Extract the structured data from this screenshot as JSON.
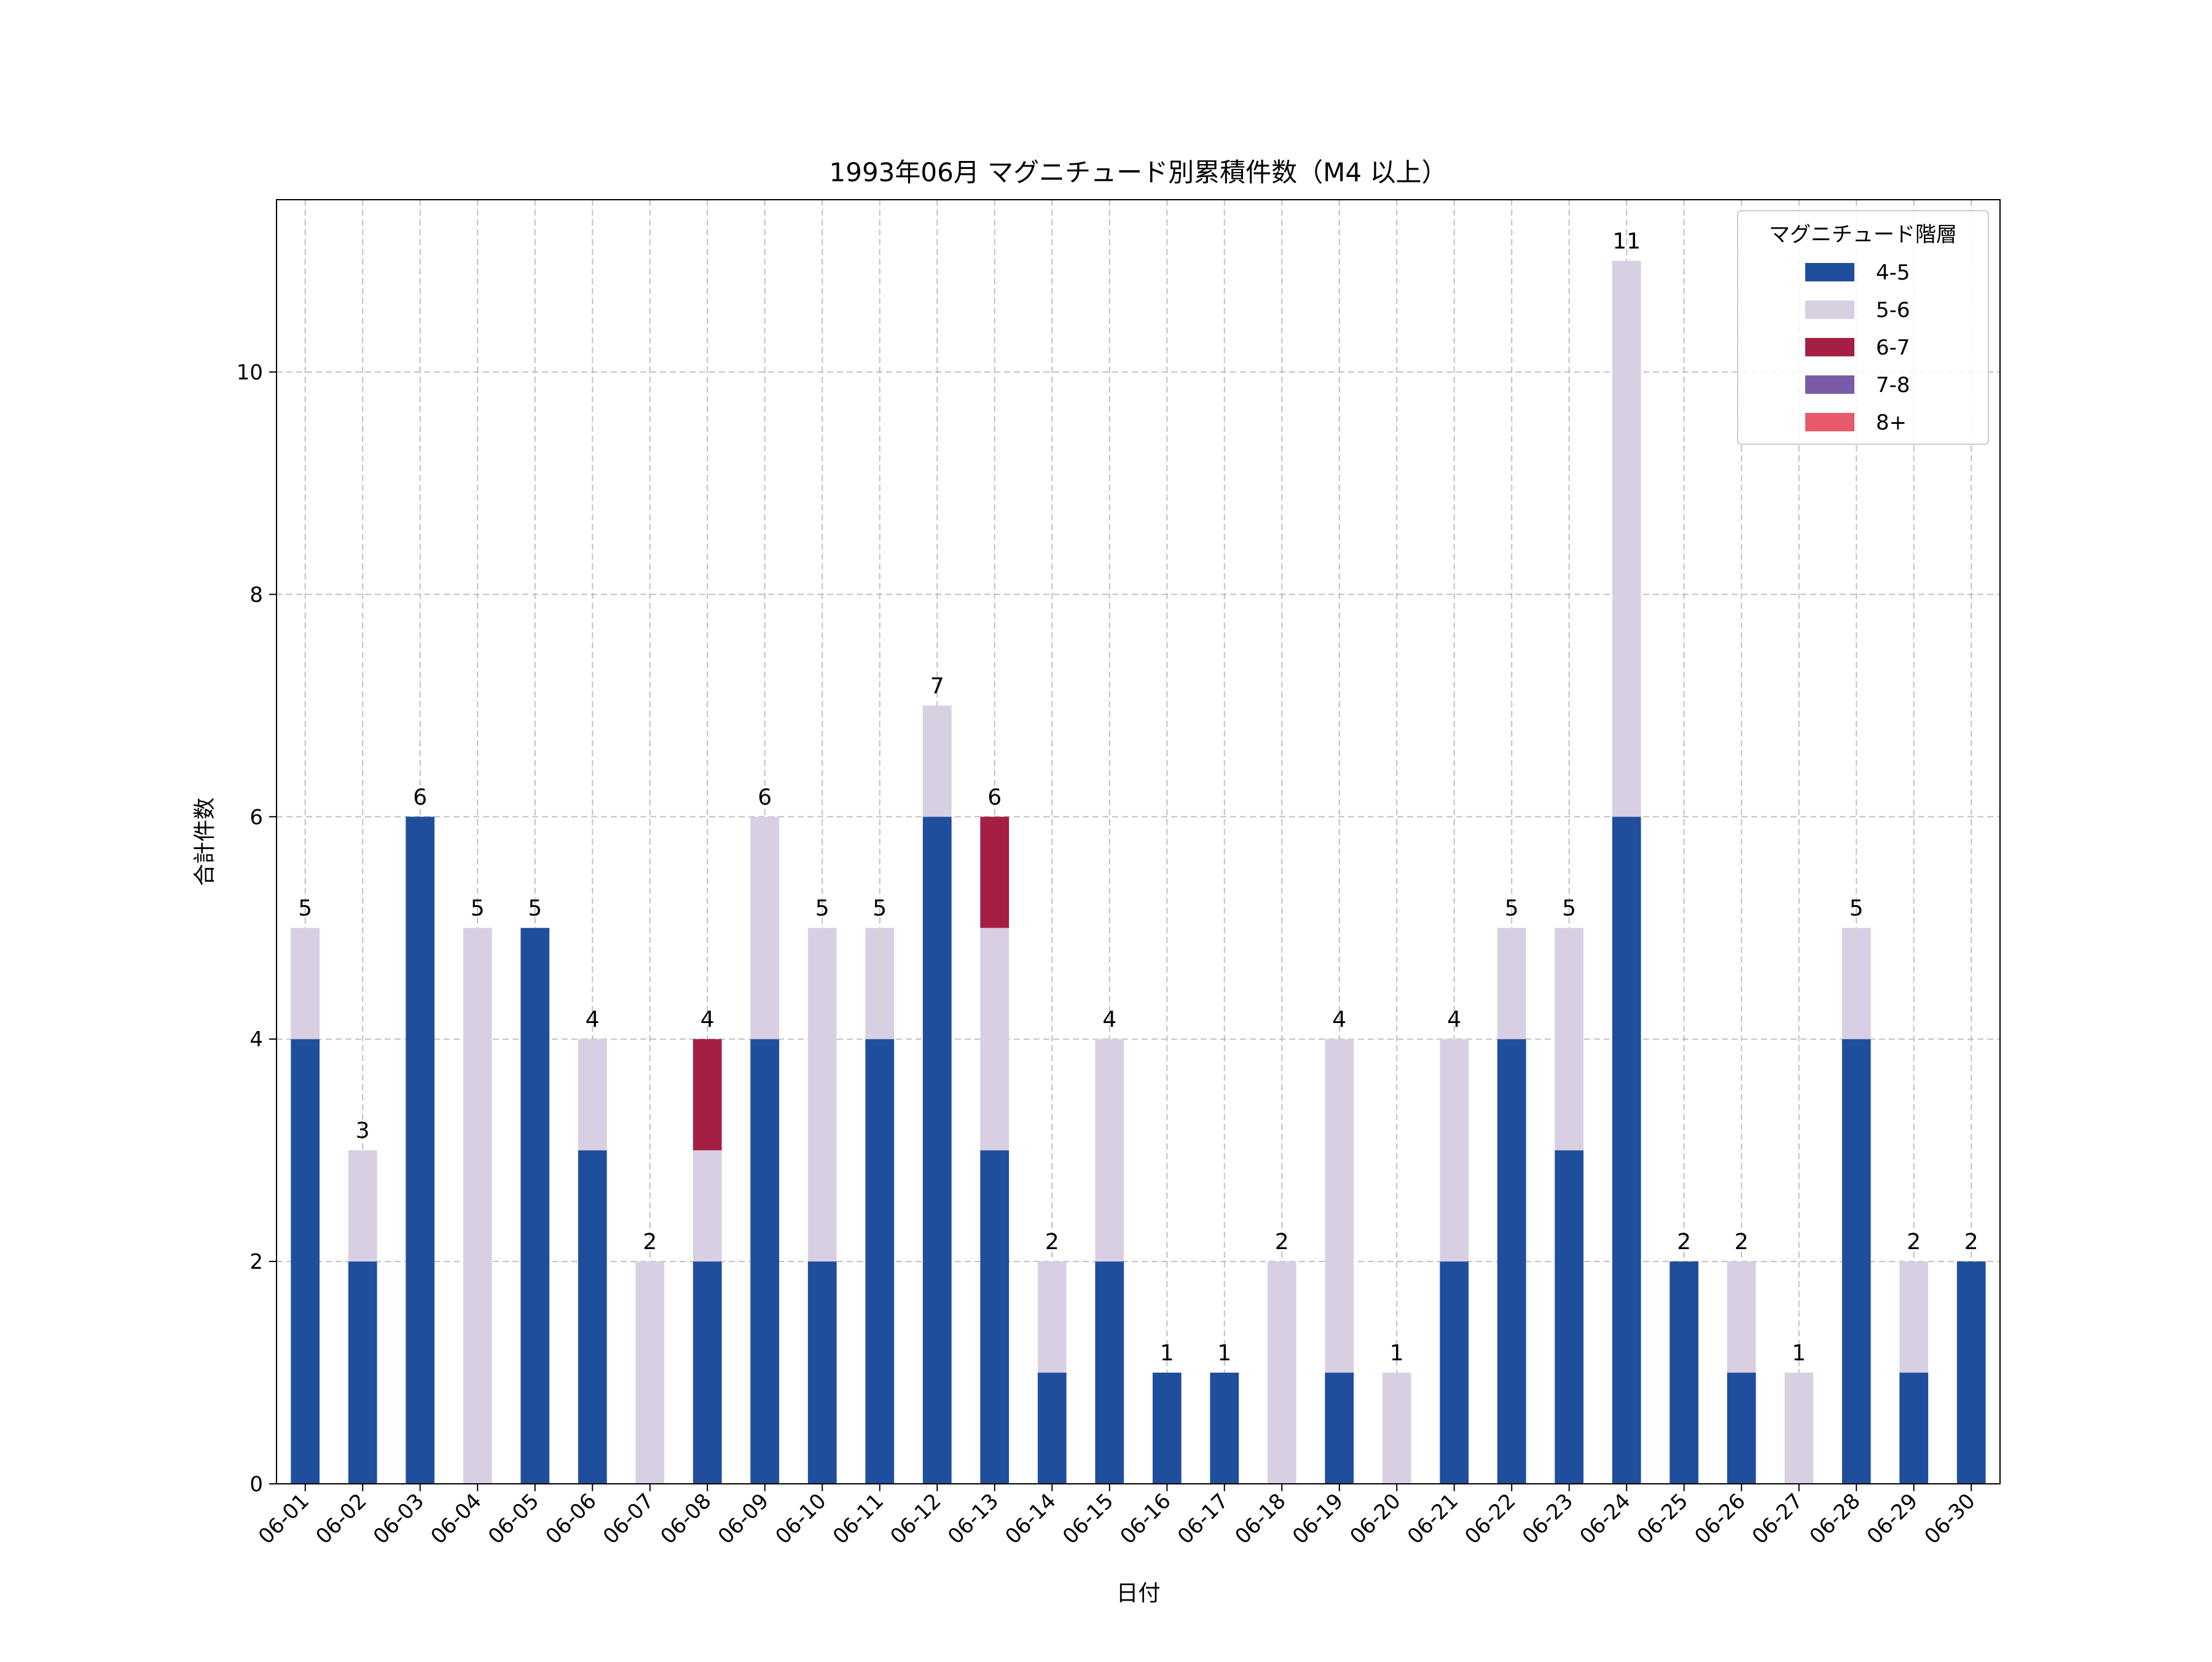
{
  "chart_data": {
    "type": "bar",
    "stacked": true,
    "title": "1993年06月 マグニチュード別累積件数（M4 以上）",
    "xlabel": "日付",
    "ylabel": "合計件数",
    "ylim": [
      0,
      11.55
    ],
    "yticks": [
      0,
      2,
      4,
      6,
      8,
      10
    ],
    "grid": true,
    "legend": {
      "title": "マグニチュード階層",
      "placement": "top-right"
    },
    "categories": [
      "06-01",
      "06-02",
      "06-03",
      "06-04",
      "06-05",
      "06-06",
      "06-07",
      "06-08",
      "06-09",
      "06-10",
      "06-11",
      "06-12",
      "06-13",
      "06-14",
      "06-15",
      "06-16",
      "06-17",
      "06-18",
      "06-19",
      "06-20",
      "06-21",
      "06-22",
      "06-23",
      "06-24",
      "06-25",
      "06-26",
      "06-27",
      "06-28",
      "06-29",
      "06-30"
    ],
    "series": [
      {
        "name": "4-5",
        "color": "#1f4e9c",
        "values": [
          4,
          2,
          6,
          0,
          5,
          3,
          0,
          2,
          4,
          2,
          4,
          6,
          3,
          1,
          2,
          1,
          1,
          0,
          1,
          0,
          2,
          4,
          3,
          6,
          2,
          1,
          0,
          4,
          1,
          2
        ]
      },
      {
        "name": "5-6",
        "color": "#d9cfe3",
        "values": [
          1,
          1,
          0,
          5,
          0,
          1,
          2,
          1,
          2,
          3,
          1,
          1,
          2,
          1,
          2,
          0,
          0,
          2,
          3,
          1,
          2,
          1,
          2,
          5,
          0,
          1,
          1,
          1,
          1,
          0
        ]
      },
      {
        "name": "6-7",
        "color": "#a51f45",
        "values": [
          0,
          0,
          0,
          0,
          0,
          0,
          0,
          1,
          0,
          0,
          0,
          0,
          1,
          0,
          0,
          0,
          0,
          0,
          0,
          0,
          0,
          0,
          0,
          0,
          0,
          0,
          0,
          0,
          0,
          0
        ]
      },
      {
        "name": "7-8",
        "color": "#7a5ba8",
        "values": [
          0,
          0,
          0,
          0,
          0,
          0,
          0,
          0,
          0,
          0,
          0,
          0,
          0,
          0,
          0,
          0,
          0,
          0,
          0,
          0,
          0,
          0,
          0,
          0,
          0,
          0,
          0,
          0,
          0,
          0
        ]
      },
      {
        "name": "8+",
        "color": "#e85a6a",
        "values": [
          0,
          0,
          0,
          0,
          0,
          0,
          0,
          0,
          0,
          0,
          0,
          0,
          0,
          0,
          0,
          0,
          0,
          0,
          0,
          0,
          0,
          0,
          0,
          0,
          0,
          0,
          0,
          0,
          0,
          0
        ]
      }
    ],
    "totals": [
      5,
      3,
      6,
      5,
      5,
      4,
      2,
      4,
      6,
      5,
      5,
      7,
      6,
      2,
      4,
      1,
      1,
      2,
      4,
      1,
      4,
      5,
      5,
      11,
      2,
      2,
      1,
      5,
      2,
      2
    ]
  }
}
